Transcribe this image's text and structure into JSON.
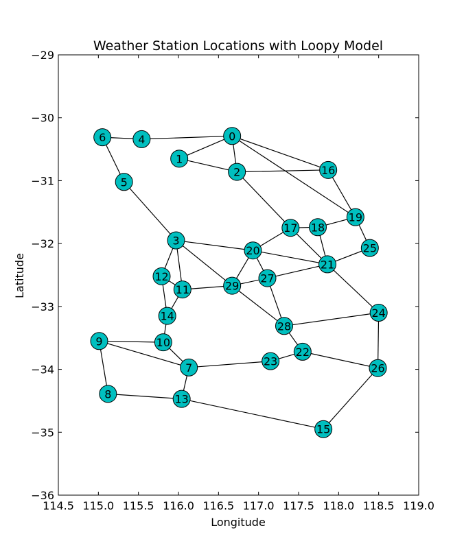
{
  "chart_data": {
    "type": "scatter",
    "title": "Weather Station Locations with Loopy Model",
    "xlabel": "Longitude",
    "ylabel": "Latitude",
    "xlim": [
      114.5,
      119.0
    ],
    "ylim": [
      -36,
      -29
    ],
    "xticks": [
      "114.5",
      "115.0",
      "115.5",
      "116.0",
      "116.5",
      "117.0",
      "117.5",
      "118.0",
      "118.5",
      "119.0"
    ],
    "yticks": [
      "−29",
      "−30",
      "−31",
      "−32",
      "−33",
      "−34",
      "−35",
      "−36"
    ],
    "grid": false,
    "node_color": "#00bfbf",
    "nodes": [
      {
        "id": "0",
        "x": 116.67,
        "y": -30.29
      },
      {
        "id": "1",
        "x": 116.01,
        "y": -30.65
      },
      {
        "id": "2",
        "x": 116.73,
        "y": -30.86
      },
      {
        "id": "3",
        "x": 115.97,
        "y": -31.95
      },
      {
        "id": "4",
        "x": 115.54,
        "y": -30.34
      },
      {
        "id": "5",
        "x": 115.32,
        "y": -31.02
      },
      {
        "id": "6",
        "x": 115.05,
        "y": -30.31
      },
      {
        "id": "7",
        "x": 116.13,
        "y": -33.97
      },
      {
        "id": "8",
        "x": 115.12,
        "y": -34.39
      },
      {
        "id": "9",
        "x": 115.01,
        "y": -33.55
      },
      {
        "id": "10",
        "x": 115.81,
        "y": -33.57
      },
      {
        "id": "11",
        "x": 116.05,
        "y": -32.73
      },
      {
        "id": "12",
        "x": 115.79,
        "y": -32.52
      },
      {
        "id": "13",
        "x": 116.04,
        "y": -34.47
      },
      {
        "id": "14",
        "x": 115.86,
        "y": -33.15
      },
      {
        "id": "15",
        "x": 117.81,
        "y": -34.95
      },
      {
        "id": "16",
        "x": 117.87,
        "y": -30.83
      },
      {
        "id": "17",
        "x": 117.4,
        "y": -31.75
      },
      {
        "id": "18",
        "x": 117.74,
        "y": -31.74
      },
      {
        "id": "19",
        "x": 118.21,
        "y": -31.58
      },
      {
        "id": "20",
        "x": 116.93,
        "y": -32.11
      },
      {
        "id": "21",
        "x": 117.86,
        "y": -32.33
      },
      {
        "id": "22",
        "x": 117.55,
        "y": -33.72
      },
      {
        "id": "23",
        "x": 117.15,
        "y": -33.87
      },
      {
        "id": "24",
        "x": 118.5,
        "y": -33.1
      },
      {
        "id": "25",
        "x": 118.39,
        "y": -32.07
      },
      {
        "id": "26",
        "x": 118.49,
        "y": -33.98
      },
      {
        "id": "27",
        "x": 117.11,
        "y": -32.55
      },
      {
        "id": "28",
        "x": 117.32,
        "y": -33.31
      },
      {
        "id": "29",
        "x": 116.67,
        "y": -32.67
      }
    ],
    "edges": [
      [
        "0",
        "1"
      ],
      [
        "0",
        "2"
      ],
      [
        "0",
        "4"
      ],
      [
        "0",
        "16"
      ],
      [
        "0",
        "19"
      ],
      [
        "1",
        "2"
      ],
      [
        "4",
        "6"
      ],
      [
        "5",
        "6"
      ],
      [
        "3",
        "5"
      ],
      [
        "2",
        "16"
      ],
      [
        "2",
        "17"
      ],
      [
        "16",
        "19"
      ],
      [
        "17",
        "18"
      ],
      [
        "18",
        "19"
      ],
      [
        "19",
        "25"
      ],
      [
        "25",
        "21"
      ],
      [
        "18",
        "21"
      ],
      [
        "17",
        "21"
      ],
      [
        "17",
        "20"
      ],
      [
        "20",
        "21"
      ],
      [
        "21",
        "27"
      ],
      [
        "21",
        "24"
      ],
      [
        "3",
        "20"
      ],
      [
        "3",
        "12"
      ],
      [
        "3",
        "11"
      ],
      [
        "3",
        "29"
      ],
      [
        "12",
        "11"
      ],
      [
        "12",
        "14"
      ],
      [
        "11",
        "14"
      ],
      [
        "11",
        "29"
      ],
      [
        "29",
        "20"
      ],
      [
        "29",
        "27"
      ],
      [
        "20",
        "27"
      ],
      [
        "27",
        "28"
      ],
      [
        "29",
        "28"
      ],
      [
        "28",
        "24"
      ],
      [
        "28",
        "22"
      ],
      [
        "22",
        "23"
      ],
      [
        "23",
        "7"
      ],
      [
        "22",
        "26"
      ],
      [
        "24",
        "26"
      ],
      [
        "26",
        "15"
      ],
      [
        "15",
        "13"
      ],
      [
        "13",
        "7"
      ],
      [
        "13",
        "8"
      ],
      [
        "8",
        "9"
      ],
      [
        "9",
        "10"
      ],
      [
        "9",
        "7"
      ],
      [
        "10",
        "7"
      ],
      [
        "14",
        "10"
      ]
    ]
  }
}
